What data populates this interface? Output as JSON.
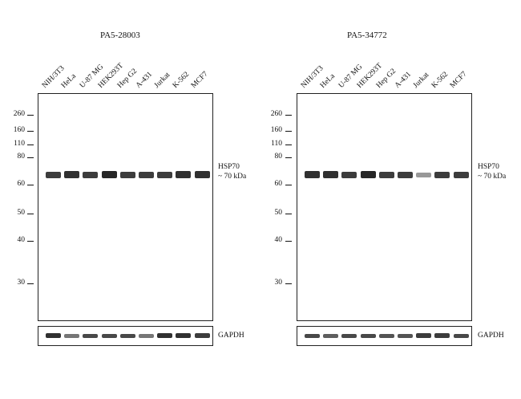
{
  "panels": [
    {
      "antibody": "PA5-28003",
      "target_label": "HSP70",
      "target_size": "~ 70 kDa",
      "loading_control": "GAPDH",
      "main_band_intensities": [
        0.85,
        0.9,
        0.85,
        0.95,
        0.85,
        0.85,
        0.85,
        0.9,
        0.9
      ],
      "gapdh_intensities": [
        0.9,
        0.6,
        0.8,
        0.8,
        0.8,
        0.6,
        0.9,
        0.9,
        0.85
      ]
    },
    {
      "antibody": "PA5-34772",
      "target_label": "HSP70",
      "target_size": "~ 70 kDa",
      "loading_control": "GAPDH",
      "main_band_intensities": [
        0.9,
        0.9,
        0.85,
        0.95,
        0.85,
        0.85,
        0.45,
        0.85,
        0.85
      ],
      "gapdh_intensities": [
        0.8,
        0.7,
        0.8,
        0.8,
        0.75,
        0.75,
        0.85,
        0.85,
        0.8
      ]
    }
  ],
  "lanes": [
    "NIH/3T3",
    "HeLa",
    "U-87 MG",
    "HEK293T",
    "Hep G2",
    "A-431",
    "Jurkat",
    "K-562",
    "MCF7"
  ],
  "mw_markers": [
    "260",
    "160",
    "110",
    "80",
    "60",
    "50",
    "40",
    "30"
  ],
  "band_color": "#1a1a1a"
}
